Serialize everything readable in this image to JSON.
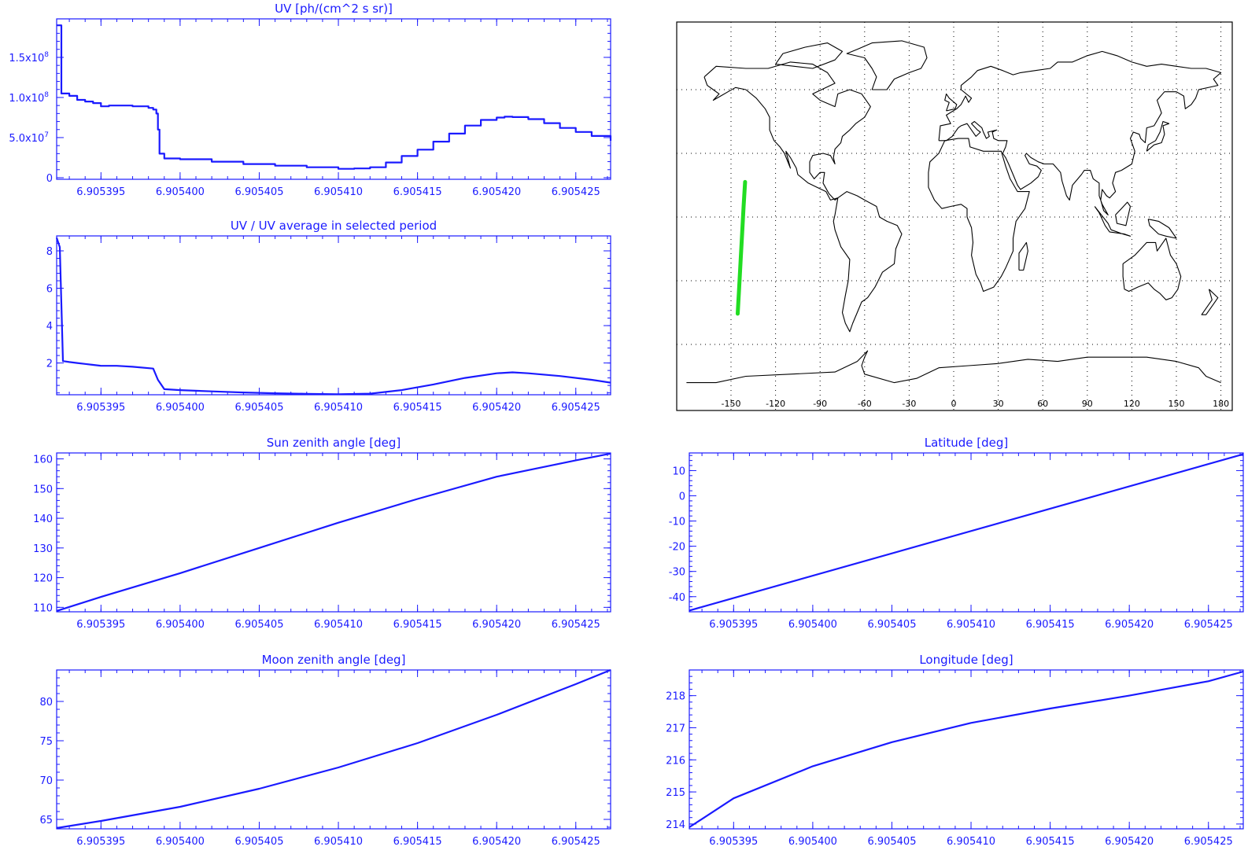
{
  "colors": {
    "plot": "#1a1aff",
    "track": "#22dd22",
    "map_line": "#000000",
    "background": "#ffffff"
  },
  "chart_data": [
    {
      "id": "uv",
      "type": "line",
      "title": "UV [ph/(cm^2 s sr)]",
      "xlim": [
        6.9053922,
        6.9054272
      ],
      "xticks": [
        6.905395,
        6.9054,
        6.905405,
        6.90541,
        6.905415,
        6.90542,
        6.905425
      ],
      "xtick_labels": [
        "6.905395",
        "6.905400",
        "6.905405",
        "6.905410",
        "6.905415",
        "6.905420",
        "6.905425"
      ],
      "ylim": [
        -2000000,
        198000000
      ],
      "yticks": [
        0,
        50000000,
        100000000,
        150000000
      ],
      "ytick_labels": [
        {
          "text": "0"
        },
        {
          "mant": "5.0x10",
          "exp": "7"
        },
        {
          "mant": "1.0x10",
          "exp": "8"
        },
        {
          "mant": "1.5x10",
          "exp": "8"
        }
      ],
      "step": true,
      "x": [
        6.9053922,
        6.9053925,
        6.905393,
        6.9053935,
        6.905394,
        6.9053945,
        6.905395,
        6.9053955,
        6.905396,
        6.905397,
        6.905398,
        6.9053983,
        6.9053985,
        6.9053986,
        6.9053987,
        6.905399,
        6.9054,
        6.905402,
        6.905404,
        6.905406,
        6.905408,
        6.90541,
        6.905411,
        6.905412,
        6.905413,
        6.905414,
        6.905415,
        6.905416,
        6.905417,
        6.905418,
        6.905419,
        6.90542,
        6.9054205,
        6.905421,
        6.905422,
        6.905423,
        6.905424,
        6.905425,
        6.905426,
        6.9054272
      ],
      "y": [
        190000000,
        105000000,
        102000000,
        97000000,
        95000000,
        93000000,
        89000000,
        90000000,
        90000000,
        89000000,
        87000000,
        85000000,
        80000000,
        60000000,
        30000000,
        24000000,
        23000000,
        20000000,
        17000000,
        15000000,
        13000000,
        11000000,
        11500000,
        13000000,
        19000000,
        27000000,
        35000000,
        45000000,
        55000000,
        65000000,
        72000000,
        75000000,
        76000000,
        75500000,
        73000000,
        68000000,
        62000000,
        57000000,
        52000000,
        46000000
      ]
    },
    {
      "id": "uv-ratio",
      "type": "line",
      "title": "UV / UV average in selected period",
      "xlim": [
        6.9053922,
        6.9054272
      ],
      "xticks": [
        6.905395,
        6.9054,
        6.905405,
        6.90541,
        6.905415,
        6.90542,
        6.905425
      ],
      "xtick_labels": [
        "6.905395",
        "6.905400",
        "6.905405",
        "6.905410",
        "6.905415",
        "6.905420",
        "6.905425"
      ],
      "ylim": [
        0.3,
        8.8
      ],
      "yticks": [
        2,
        4,
        6,
        8
      ],
      "ytick_labels": [
        {
          "text": "2"
        },
        {
          "text": "4"
        },
        {
          "text": "6"
        },
        {
          "text": "8"
        }
      ],
      "x": [
        6.9053922,
        6.9053924,
        6.9053926,
        6.905393,
        6.9053935,
        6.905394,
        6.9053945,
        6.905395,
        6.905396,
        6.905397,
        6.9053983,
        6.9053986,
        6.905399,
        6.9054,
        6.905402,
        6.905404,
        6.905406,
        6.905408,
        6.90541,
        6.905412,
        6.905414,
        6.905416,
        6.905418,
        6.90542,
        6.905421,
        6.905422,
        6.905424,
        6.905426,
        6.9054272
      ],
      "y": [
        8.7,
        8.2,
        2.1,
        2.05,
        2.0,
        1.95,
        1.9,
        1.85,
        1.85,
        1.8,
        1.7,
        1.1,
        0.6,
        0.55,
        0.48,
        0.42,
        0.38,
        0.35,
        0.33,
        0.36,
        0.55,
        0.85,
        1.2,
        1.45,
        1.5,
        1.45,
        1.3,
        1.1,
        0.95
      ]
    },
    {
      "id": "sun-zenith",
      "type": "line",
      "title": "Sun zenith angle [deg]",
      "xlim": [
        6.9053922,
        6.9054272
      ],
      "xticks": [
        6.905395,
        6.9054,
        6.905405,
        6.90541,
        6.905415,
        6.90542,
        6.905425
      ],
      "xtick_labels": [
        "6.905395",
        "6.905400",
        "6.905405",
        "6.905410",
        "6.905415",
        "6.905420",
        "6.905425"
      ],
      "ylim": [
        108.5,
        162
      ],
      "yticks": [
        110,
        120,
        130,
        140,
        150,
        160
      ],
      "ytick_labels": [
        {
          "text": "110"
        },
        {
          "text": "120"
        },
        {
          "text": "130"
        },
        {
          "text": "140"
        },
        {
          "text": "150"
        },
        {
          "text": "160"
        }
      ],
      "x": [
        6.9053922,
        6.905395,
        6.9054,
        6.905405,
        6.90541,
        6.905415,
        6.90542,
        6.905425,
        6.9054272
      ],
      "y": [
        108.8,
        113.5,
        121.5,
        130,
        138.5,
        146.5,
        154,
        159.5,
        161.8
      ]
    },
    {
      "id": "latitude",
      "type": "line",
      "title": "Latitude [deg]",
      "xlim": [
        6.9053922,
        6.9054272
      ],
      "xticks": [
        6.905395,
        6.9054,
        6.905405,
        6.90541,
        6.905415,
        6.90542,
        6.905425
      ],
      "xtick_labels": [
        "6.905395",
        "6.905400",
        "6.905405",
        "6.905410",
        "6.905415",
        "6.905420",
        "6.905425"
      ],
      "ylim": [
        -46,
        17
      ],
      "yticks": [
        -40,
        -30,
        -20,
        -10,
        0,
        10
      ],
      "ytick_labels": [
        {
          "text": "-40"
        },
        {
          "text": "-30"
        },
        {
          "text": "-20"
        },
        {
          "text": "-10"
        },
        {
          "text": "0"
        },
        {
          "text": "10"
        }
      ],
      "x": [
        6.9053922,
        6.9054272
      ],
      "y": [
        -45.5,
        16.5
      ]
    },
    {
      "id": "moon-zenith",
      "type": "line",
      "title": "Moon zenith angle [deg]",
      "xlim": [
        6.9053922,
        6.9054272
      ],
      "xticks": [
        6.905395,
        6.9054,
        6.905405,
        6.90541,
        6.905415,
        6.90542,
        6.905425
      ],
      "xtick_labels": [
        "6.905395",
        "6.905400",
        "6.905405",
        "6.905410",
        "6.905415",
        "6.905420",
        "6.905425"
      ],
      "ylim": [
        63.8,
        84
      ],
      "yticks": [
        65,
        70,
        75,
        80
      ],
      "ytick_labels": [
        {
          "text": "65"
        },
        {
          "text": "70"
        },
        {
          "text": "75"
        },
        {
          "text": "80"
        }
      ],
      "x": [
        6.9053922,
        6.905395,
        6.9054,
        6.905405,
        6.90541,
        6.905415,
        6.90542,
        6.905425,
        6.9054272
      ],
      "y": [
        63.9,
        64.8,
        66.6,
        68.9,
        71.6,
        74.7,
        78.3,
        82.2,
        84
      ]
    },
    {
      "id": "longitude",
      "type": "line",
      "title": "Longitude [deg]",
      "xlim": [
        6.9053922,
        6.9054272
      ],
      "xticks": [
        6.905395,
        6.9054,
        6.905405,
        6.90541,
        6.905415,
        6.90542,
        6.905425
      ],
      "xtick_labels": [
        "6.905395",
        "6.905400",
        "6.905405",
        "6.905410",
        "6.905415",
        "6.905420",
        "6.905425"
      ],
      "ylim": [
        213.85,
        218.8
      ],
      "yticks": [
        214,
        215,
        216,
        217,
        218
      ],
      "ytick_labels": [
        {
          "text": "214"
        },
        {
          "text": "215"
        },
        {
          "text": "216"
        },
        {
          "text": "217"
        },
        {
          "text": "218"
        }
      ],
      "x": [
        6.9053922,
        6.905395,
        6.9054,
        6.905405,
        6.90541,
        6.905415,
        6.90542,
        6.905425,
        6.9054272
      ],
      "y": [
        213.9,
        214.8,
        215.8,
        216.55,
        217.15,
        217.6,
        218.0,
        218.45,
        218.75
      ]
    }
  ],
  "map": {
    "xticks": [
      -150,
      -120,
      -90,
      -60,
      -30,
      0,
      30,
      60,
      90,
      120,
      150,
      180
    ],
    "xtick_labels": [
      "-150",
      "-120",
      "-90",
      "-60",
      "-30",
      "0",
      "30",
      "60",
      "90",
      "120",
      "150",
      "180"
    ],
    "grid_lat": [
      60,
      30,
      0,
      -30,
      -60
    ],
    "track": {
      "lon": [
        -140.5,
        -141.5,
        -142.5,
        -143.5,
        -144.5,
        -145.5
      ],
      "lat": [
        16.5,
        5,
        -8,
        -20,
        -33,
        -45.5
      ]
    }
  }
}
